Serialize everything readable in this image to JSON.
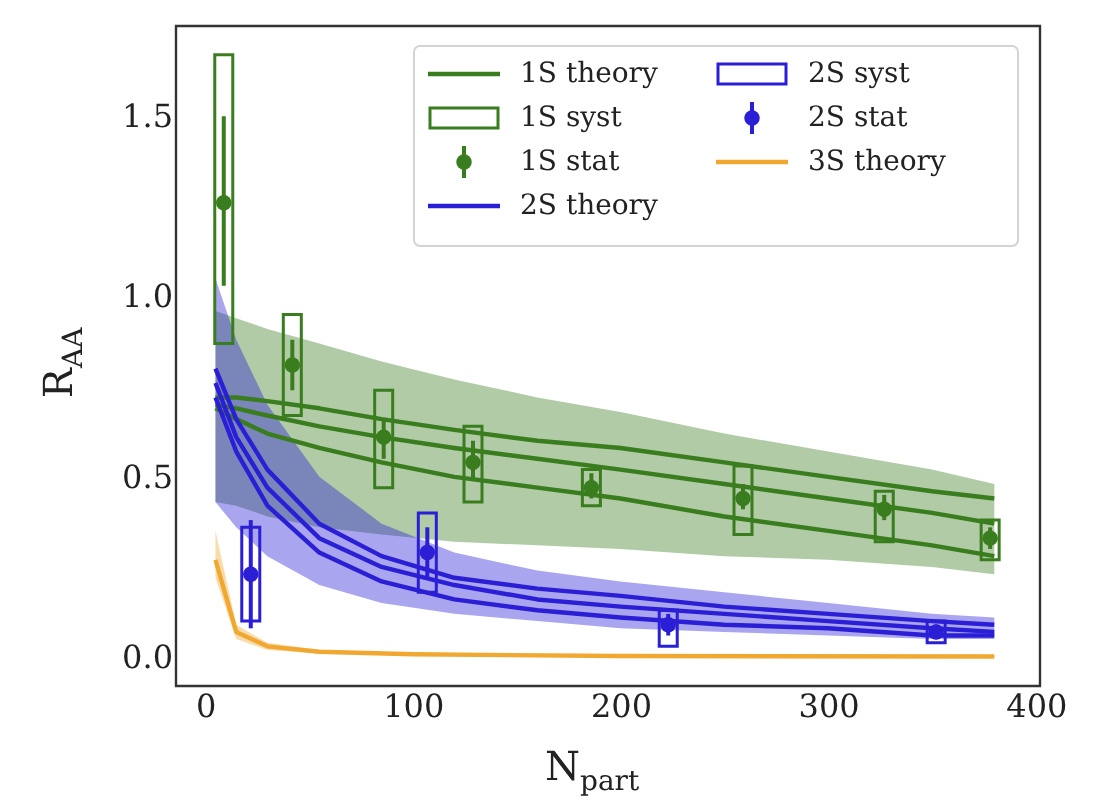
{
  "chart_data": {
    "type": "line",
    "xlabel": "N$_{part}$",
    "ylabel": "R$_{AA}$",
    "xlim": [
      -14,
      402
    ],
    "ylim": [
      -0.08,
      1.75
    ],
    "xticks": [
      0,
      100,
      200,
      300,
      400
    ],
    "yticks": [
      {
        "value": 0,
        "label": "0.0"
      },
      {
        "value": 0.5,
        "label": "0.5"
      },
      {
        "value": 1,
        "label": "1.0"
      },
      {
        "value": 1.5,
        "label": "1.5"
      }
    ],
    "grid": false,
    "legend": "top right",
    "series": [
      {
        "name": "1S theory",
        "type": "line",
        "color": "#3a7d1e",
        "x": [
          5,
          15,
          30,
          55,
          85,
          120,
          160,
          200,
          250,
          300,
          350,
          380
        ],
        "values": [
          0.72,
          0.72,
          0.71,
          0.69,
          0.66,
          0.63,
          0.6,
          0.58,
          0.54,
          0.5,
          0.46,
          0.44
        ]
      },
      {
        "type": "line",
        "color": "#3a7d1e",
        "x": [
          5,
          15,
          30,
          55,
          85,
          120,
          160,
          200,
          250,
          300,
          350,
          380
        ],
        "values": [
          0.7,
          0.69,
          0.67,
          0.64,
          0.61,
          0.58,
          0.55,
          0.52,
          0.48,
          0.44,
          0.4,
          0.37
        ],
        "lower": [
          0.43,
          0.42,
          0.39,
          0.36,
          0.34,
          0.32,
          0.31,
          0.3,
          0.28,
          0.27,
          0.25,
          0.23
        ],
        "upper": [
          0.96,
          0.94,
          0.91,
          0.87,
          0.82,
          0.77,
          0.72,
          0.68,
          0.62,
          0.57,
          0.52,
          0.48
        ]
      },
      {
        "type": "line",
        "color": "#3a7d1e",
        "x": [
          5,
          15,
          30,
          55,
          85,
          120,
          160,
          200,
          250,
          300,
          350,
          380
        ],
        "values": [
          0.69,
          0.66,
          0.62,
          0.58,
          0.54,
          0.5,
          0.47,
          0.44,
          0.39,
          0.35,
          0.31,
          0.28
        ]
      },
      {
        "name": "1S syst",
        "type": "bar",
        "color": "#3a7d1e",
        "x": [
          9,
          42,
          86,
          129,
          186,
          259,
          327,
          378
        ],
        "base": [
          0.87,
          0.67,
          0.47,
          0.43,
          0.42,
          0.34,
          0.32,
          0.27
        ],
        "values": [
          0.8,
          0.28,
          0.27,
          0.21,
          0.1,
          0.19,
          0.14,
          0.11
        ]
      },
      {
        "name": "1S stat",
        "type": "scatter",
        "marker": "circle",
        "color": "#3a7d1e",
        "x": [
          9,
          42,
          86,
          129,
          186,
          259,
          327,
          378
        ],
        "values": [
          1.26,
          0.81,
          0.61,
          0.54,
          0.47,
          0.44,
          0.41,
          0.33
        ],
        "errors": [
          [
            1.03,
            1.5
          ],
          [
            0.74,
            0.88
          ],
          [
            0.55,
            0.66
          ],
          [
            0.49,
            0.6
          ],
          [
            0.44,
            0.51
          ],
          [
            0.41,
            0.48
          ],
          [
            0.38,
            0.45
          ],
          [
            0.3,
            0.36
          ]
        ]
      },
      {
        "name": "2S theory",
        "type": "line",
        "color": "#2b1fd6",
        "x": [
          5,
          15,
          30,
          55,
          85,
          120,
          160,
          200,
          250,
          300,
          350,
          380
        ],
        "values": [
          0.8,
          0.66,
          0.52,
          0.37,
          0.28,
          0.22,
          0.19,
          0.17,
          0.14,
          0.12,
          0.1,
          0.09
        ]
      },
      {
        "type": "line",
        "color": "#2b1fd6",
        "x": [
          5,
          15,
          30,
          55,
          85,
          120,
          160,
          200,
          250,
          300,
          350,
          380
        ],
        "values": [
          0.76,
          0.61,
          0.47,
          0.33,
          0.25,
          0.2,
          0.16,
          0.14,
          0.12,
          0.1,
          0.08,
          0.07
        ],
        "lower": [
          0.43,
          0.36,
          0.28,
          0.2,
          0.15,
          0.12,
          0.1,
          0.08,
          0.07,
          0.06,
          0.05,
          0.05
        ],
        "upper": [
          1.05,
          0.88,
          0.7,
          0.5,
          0.37,
          0.29,
          0.24,
          0.21,
          0.18,
          0.15,
          0.12,
          0.11
        ]
      },
      {
        "type": "line",
        "color": "#2b1fd6",
        "x": [
          5,
          15,
          30,
          55,
          85,
          120,
          160,
          200,
          250,
          300,
          350,
          380
        ],
        "values": [
          0.72,
          0.57,
          0.42,
          0.29,
          0.21,
          0.16,
          0.13,
          0.11,
          0.09,
          0.08,
          0.06,
          0.06
        ]
      },
      {
        "name": "2S syst",
        "type": "bar",
        "color": "#2b1fd6",
        "x": [
          22,
          107,
          223,
          352
        ],
        "base": [
          0.1,
          0.18,
          0.03,
          0.04
        ],
        "values": [
          0.26,
          0.22,
          0.1,
          0.06
        ]
      },
      {
        "name": "2S stat",
        "type": "scatter",
        "marker": "circle",
        "color": "#2b1fd6",
        "x": [
          22,
          107,
          223,
          352
        ],
        "values": [
          0.23,
          0.29,
          0.09,
          0.07
        ],
        "errors": [
          [
            0.08,
            0.38
          ],
          [
            0.22,
            0.36
          ],
          [
            0.06,
            0.12
          ],
          [
            0.05,
            0.09
          ]
        ]
      },
      {
        "name": "3S theory",
        "type": "line",
        "color": "#f0a830",
        "x": [
          5,
          15,
          30,
          55,
          100,
          200,
          380
        ],
        "values": [
          0.27,
          0.07,
          0.03,
          0.015,
          0.008,
          0.003,
          0.002
        ],
        "lower": [
          0.22,
          0.05,
          0.02,
          0.01,
          0.005,
          0.001,
          0.0
        ],
        "upper": [
          0.35,
          0.09,
          0.04,
          0.02,
          0.01,
          0.005,
          0.003
        ]
      }
    ]
  }
}
